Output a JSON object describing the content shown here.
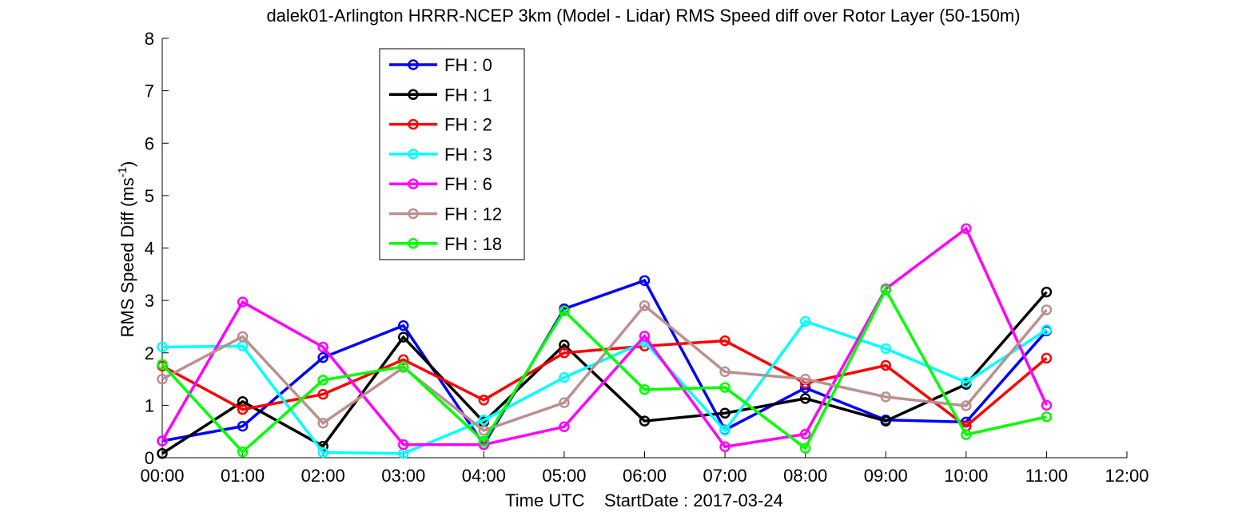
{
  "chart_data": {
    "type": "line",
    "title": "dalek01-Arlington HRRR-NCEP 3km (Model - Lidar) RMS Speed diff over Rotor Layer (50-150m)",
    "xlabel": "Time UTC    StartDate : 2017-03-24",
    "ylabel": {
      "base": "RMS Speed Diff (ms",
      "sup": "-1",
      "close": ")"
    },
    "x_ticks": [
      "00:00",
      "01:00",
      "02:00",
      "03:00",
      "04:00",
      "05:00",
      "06:00",
      "07:00",
      "08:00",
      "09:00",
      "10:00",
      "11:00",
      "12:00"
    ],
    "y_ticks": [
      "0",
      "1",
      "2",
      "3",
      "4",
      "5",
      "6",
      "7",
      "8"
    ],
    "xlim": [
      0,
      12
    ],
    "ylim": [
      0,
      8
    ],
    "grid": false,
    "legend_position": "top-left",
    "x": [
      0,
      1,
      2,
      3,
      4,
      5,
      6,
      7,
      8,
      9,
      10,
      11
    ],
    "series": [
      {
        "name": "FH : 0",
        "color": "#0000ff",
        "values": [
          0.32,
          0.6,
          1.91,
          2.52,
          0.25,
          2.84,
          3.38,
          0.53,
          1.33,
          0.72,
          0.68,
          2.42
        ]
      },
      {
        "name": "FH : 1",
        "color": "#000000",
        "values": [
          0.08,
          1.07,
          0.22,
          2.3,
          0.68,
          2.15,
          0.7,
          0.85,
          1.13,
          0.7,
          1.4,
          3.16
        ]
      },
      {
        "name": "FH : 2",
        "color": "#ff0000",
        "values": [
          1.75,
          0.92,
          1.21,
          1.87,
          1.1,
          2.0,
          2.13,
          2.23,
          1.42,
          1.76,
          0.6,
          1.9
        ]
      },
      {
        "name": "FH : 3",
        "color": "#00ffff",
        "values": [
          2.11,
          2.13,
          0.1,
          0.08,
          0.72,
          1.53,
          2.21,
          0.52,
          2.6,
          2.08,
          1.44,
          2.44
        ]
      },
      {
        "name": "FH : 6",
        "color": "#ff00ff",
        "values": [
          0.32,
          2.97,
          2.11,
          0.25,
          0.25,
          0.59,
          2.32,
          0.21,
          0.45,
          3.22,
          4.37,
          1.0
        ]
      },
      {
        "name": "FH : 12",
        "color": "#bc8f8f",
        "values": [
          1.5,
          2.31,
          0.66,
          1.72,
          0.52,
          1.05,
          2.9,
          1.64,
          1.5,
          1.16,
          0.99,
          2.82
        ]
      },
      {
        "name": "FH : 18",
        "color": "#00ff00",
        "values": [
          1.78,
          0.11,
          1.48,
          1.74,
          0.31,
          2.8,
          1.3,
          1.34,
          0.18,
          3.2,
          0.44,
          0.78
        ]
      }
    ]
  }
}
